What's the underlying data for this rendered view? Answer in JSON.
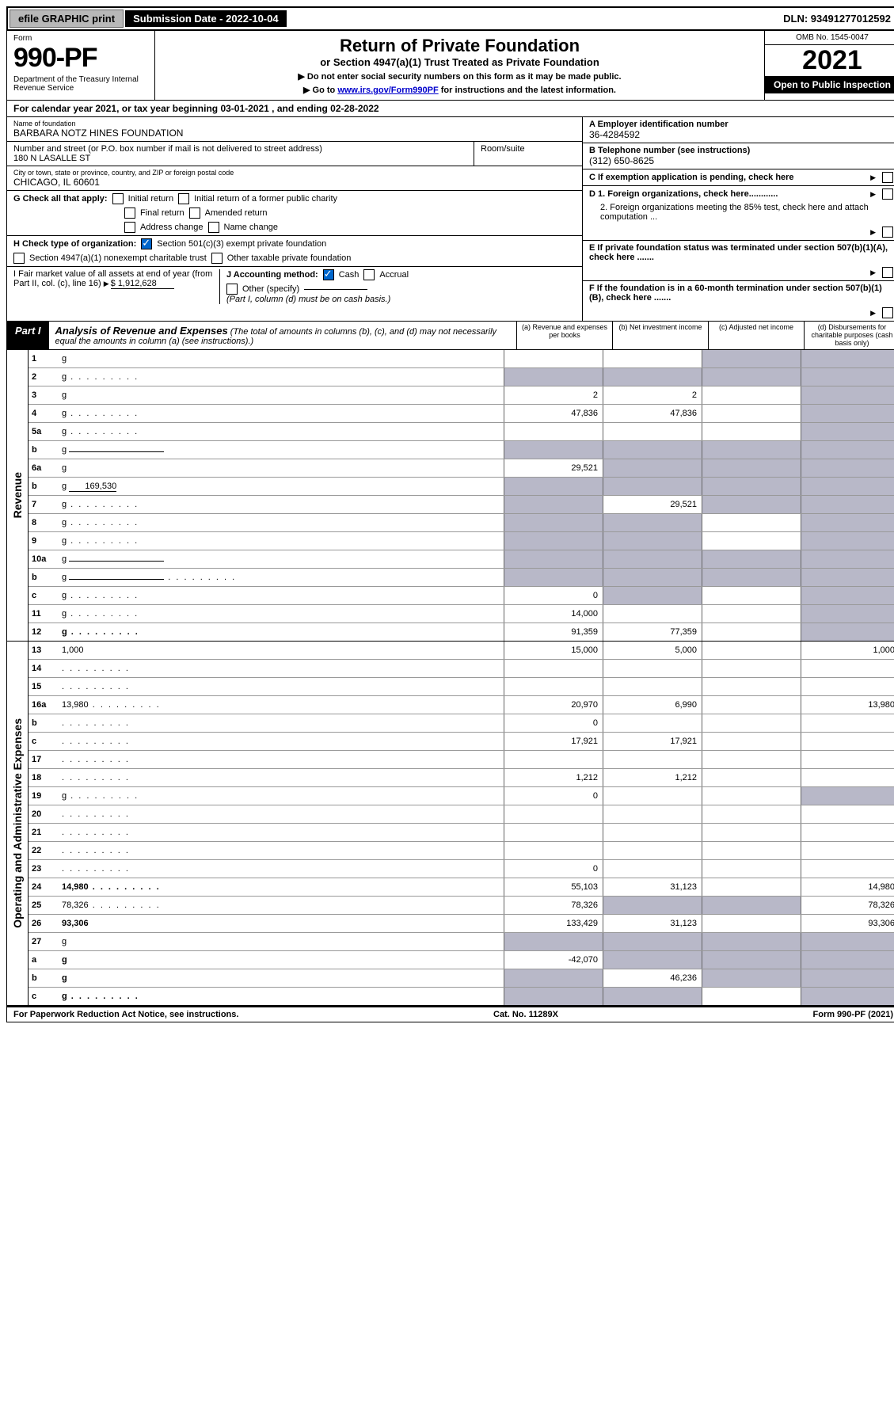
{
  "topbar": {
    "efile": "efile GRAPHIC print",
    "submission": "Submission Date - 2022-10-04",
    "dln": "DLN: 93491277012592"
  },
  "header": {
    "form_word": "Form",
    "form_num": "990-PF",
    "dept": "Department of the Treasury\nInternal Revenue Service",
    "title": "Return of Private Foundation",
    "subtitle": "or Section 4947(a)(1) Trust Treated as Private Foundation",
    "line1": "▶ Do not enter social security numbers on this form as it may be made public.",
    "line2_pre": "▶ Go to ",
    "line2_link": "www.irs.gov/Form990PF",
    "line2_post": " for instructions and the latest information.",
    "omb": "OMB No. 1545-0047",
    "year": "2021",
    "open": "Open to Public Inspection"
  },
  "cal_year": "For calendar year 2021, or tax year beginning 03-01-2021             , and ending 02-28-2022",
  "ident": {
    "name_label": "Name of foundation",
    "name": "BARBARA NOTZ HINES FOUNDATION",
    "addr_label": "Number and street (or P.O. box number if mail is not delivered to street address)",
    "addr": "180 N LASALLE ST",
    "room_label": "Room/suite",
    "city_label": "City or town, state or province, country, and ZIP or foreign postal code",
    "city": "CHICAGO, IL  60601",
    "a_label": "A Employer identification number",
    "a_val": "36-4284592",
    "b_label": "B Telephone number (see instructions)",
    "b_val": "(312) 650-8625",
    "c_label": "C If exemption application is pending, check here",
    "d1": "D 1. Foreign organizations, check here............",
    "d2": "2. Foreign organizations meeting the 85% test, check here and attach computation ...",
    "e": "E  If private foundation status was terminated under section 507(b)(1)(A), check here .......",
    "f": "F  If the foundation is in a 60-month termination under section 507(b)(1)(B), check here .......",
    "g_label": "G Check all that apply:",
    "g_opts": [
      "Initial return",
      "Initial return of a former public charity",
      "Final return",
      "Amended return",
      "Address change",
      "Name change"
    ],
    "h_label": "H Check type of organization:",
    "h1": "Section 501(c)(3) exempt private foundation",
    "h2": "Section 4947(a)(1) nonexempt charitable trust",
    "h3": "Other taxable private foundation",
    "i_label": "I Fair market value of all assets at end of year (from Part II, col. (c), line 16)",
    "i_val": "$  1,912,628",
    "j_label": "J Accounting method:",
    "j_cash": "Cash",
    "j_accrual": "Accrual",
    "j_other": "Other (specify)",
    "j_note": "(Part I, column (d) must be on cash basis.)"
  },
  "part1": {
    "tag": "Part I",
    "title": "Analysis of Revenue and Expenses",
    "note": "(The total of amounts in columns (b), (c), and (d) may not necessarily equal the amounts in column (a) (see instructions).)",
    "col_a": "(a)  Revenue and expenses per books",
    "col_b": "(b)  Net investment income",
    "col_c": "(c)  Adjusted net income",
    "col_d": "(d)  Disbursements for charitable purposes (cash basis only)"
  },
  "revenue_rows": [
    {
      "n": "1",
      "d": "g",
      "a": "",
      "b": "",
      "c": "g"
    },
    {
      "n": "2",
      "d": "g",
      "dots": true,
      "a": "g",
      "b": "g",
      "c": "g"
    },
    {
      "n": "3",
      "d": "g",
      "a": "2",
      "b": "2",
      "c": ""
    },
    {
      "n": "4",
      "d": "g",
      "dots": true,
      "a": "47,836",
      "b": "47,836",
      "c": ""
    },
    {
      "n": "5a",
      "d": "g",
      "dots": true,
      "a": "",
      "b": "",
      "c": ""
    },
    {
      "n": "b",
      "d": "g",
      "under": true,
      "a": "g",
      "b": "g",
      "c": "g"
    },
    {
      "n": "6a",
      "d": "g",
      "a": "29,521",
      "b": "g",
      "c": "g"
    },
    {
      "n": "b",
      "d": "g",
      "under": "169,530",
      "a": "g",
      "b": "g",
      "c": "g"
    },
    {
      "n": "7",
      "d": "g",
      "dots": true,
      "a": "g",
      "b": "29,521",
      "c": "g"
    },
    {
      "n": "8",
      "d": "g",
      "dots": true,
      "a": "g",
      "b": "g",
      "c": ""
    },
    {
      "n": "9",
      "d": "g",
      "dots": true,
      "a": "g",
      "b": "g",
      "c": ""
    },
    {
      "n": "10a",
      "d": "g",
      "under": true,
      "a": "g",
      "b": "g",
      "c": "g"
    },
    {
      "n": "b",
      "d": "g",
      "dots": true,
      "under": true,
      "a": "g",
      "b": "g",
      "c": "g"
    },
    {
      "n": "c",
      "d": "g",
      "dots": true,
      "a": "0",
      "b": "g",
      "c": ""
    },
    {
      "n": "11",
      "d": "g",
      "dots": true,
      "a": "14,000",
      "b": "",
      "c": ""
    },
    {
      "n": "12",
      "d": "g",
      "dots": true,
      "bold": true,
      "a": "91,359",
      "b": "77,359",
      "c": ""
    }
  ],
  "expense_rows": [
    {
      "n": "13",
      "d": "1,000",
      "a": "15,000",
      "b": "5,000",
      "c": ""
    },
    {
      "n": "14",
      "d": "",
      "dots": true,
      "a": "",
      "b": "",
      "c": ""
    },
    {
      "n": "15",
      "d": "",
      "dots": true,
      "a": "",
      "b": "",
      "c": ""
    },
    {
      "n": "16a",
      "d": "13,980",
      "dots": true,
      "a": "20,970",
      "b": "6,990",
      "c": ""
    },
    {
      "n": "b",
      "d": "",
      "dots": true,
      "a": "0",
      "b": "",
      "c": ""
    },
    {
      "n": "c",
      "d": "",
      "dots": true,
      "a": "17,921",
      "b": "17,921",
      "c": ""
    },
    {
      "n": "17",
      "d": "",
      "dots": true,
      "a": "",
      "b": "",
      "c": ""
    },
    {
      "n": "18",
      "d": "",
      "dots": true,
      "a": "1,212",
      "b": "1,212",
      "c": ""
    },
    {
      "n": "19",
      "d": "g",
      "dots": true,
      "a": "0",
      "b": "",
      "c": ""
    },
    {
      "n": "20",
      "d": "",
      "dots": true,
      "a": "",
      "b": "",
      "c": ""
    },
    {
      "n": "21",
      "d": "",
      "dots": true,
      "a": "",
      "b": "",
      "c": ""
    },
    {
      "n": "22",
      "d": "",
      "dots": true,
      "a": "",
      "b": "",
      "c": ""
    },
    {
      "n": "23",
      "d": "",
      "dots": true,
      "a": "0",
      "b": "",
      "c": ""
    },
    {
      "n": "24",
      "d": "14,980",
      "dots": true,
      "bold": true,
      "a": "55,103",
      "b": "31,123",
      "c": ""
    },
    {
      "n": "25",
      "d": "78,326",
      "dots": true,
      "a": "78,326",
      "b": "g",
      "c": "g"
    },
    {
      "n": "26",
      "d": "93,306",
      "bold": true,
      "a": "133,429",
      "b": "31,123",
      "c": ""
    },
    {
      "n": "27",
      "d": "g",
      "a": "g",
      "b": "g",
      "c": "g"
    },
    {
      "n": "a",
      "d": "g",
      "bold": true,
      "a": "-42,070",
      "b": "g",
      "c": "g"
    },
    {
      "n": "b",
      "d": "g",
      "bold": true,
      "a": "g",
      "b": "46,236",
      "c": "g"
    },
    {
      "n": "c",
      "d": "g",
      "dots": true,
      "bold": true,
      "a": "g",
      "b": "g",
      "c": ""
    }
  ],
  "side_labels": {
    "rev": "Revenue",
    "exp": "Operating and Administrative Expenses"
  },
  "footer": {
    "left": "For Paperwork Reduction Act Notice, see instructions.",
    "mid": "Cat. No. 11289X",
    "right": "Form 990-PF (2021)"
  },
  "colors": {
    "gray_cell": "#b8b8c8",
    "link": "#0000cc",
    "check": "#0066cc"
  }
}
